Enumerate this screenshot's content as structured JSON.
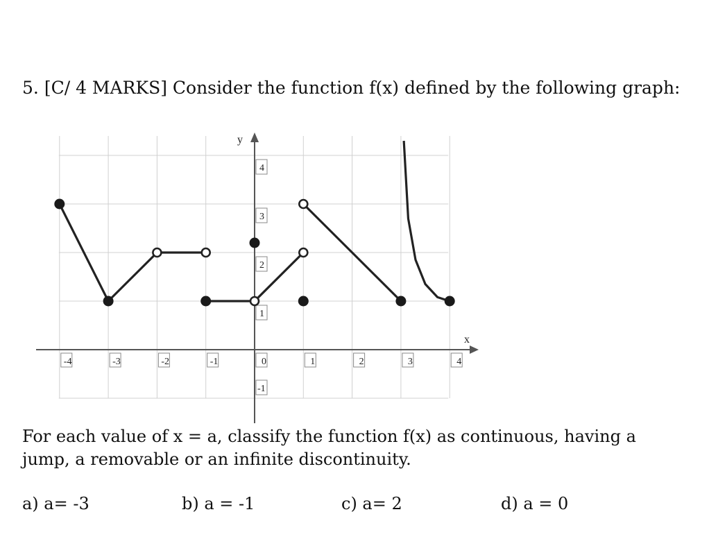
{
  "question": {
    "number": "5.",
    "marks": "[C/ 4 MARKS]",
    "text": "Consider the function f(x) defined by the following graph:"
  },
  "chart_data": {
    "type": "line",
    "title": "",
    "xlabel": "x",
    "ylabel": "y",
    "xlim": [
      -4.5,
      4.5
    ],
    "ylim": [
      -1,
      4
    ],
    "grid": true,
    "x_ticks": [
      "-4",
      "-3",
      "-2",
      "-1",
      "0",
      "1",
      "2",
      "3",
      "4"
    ],
    "y_ticks": [
      "4",
      "3",
      "2",
      "1",
      "-1"
    ],
    "segments": [
      {
        "points": [
          [
            -4,
            3
          ],
          [
            -3,
            1
          ]
        ]
      },
      {
        "points": [
          [
            -3,
            1
          ],
          [
            -2,
            2
          ]
        ]
      },
      {
        "points": [
          [
            -2,
            2
          ],
          [
            -1,
            2
          ]
        ]
      },
      {
        "points": [
          [
            -1,
            1
          ],
          [
            0,
            1
          ]
        ]
      },
      {
        "points": [
          [
            0,
            1
          ],
          [
            1,
            2
          ]
        ]
      },
      {
        "points": [
          [
            1,
            3
          ],
          [
            3,
            1
          ]
        ]
      }
    ],
    "curve": {
      "description": "vertical asymptote at x = 3 (curve rises without bound as x approaches 3 from the right)",
      "points": [
        [
          3.06,
          4.3
        ],
        [
          3.15,
          2.7
        ],
        [
          3.3,
          1.85
        ],
        [
          3.5,
          1.35
        ],
        [
          3.75,
          1.08
        ],
        [
          4,
          1
        ]
      ]
    },
    "closed_points": [
      [
        -4,
        3
      ],
      [
        -3,
        1
      ],
      [
        -1,
        1
      ],
      [
        0,
        2.2
      ],
      [
        1,
        1
      ],
      [
        3,
        1
      ],
      [
        4,
        1
      ]
    ],
    "open_points": [
      [
        -2,
        2
      ],
      [
        -1,
        2
      ],
      [
        0,
        1
      ],
      [
        1,
        2
      ],
      [
        1,
        3
      ]
    ]
  },
  "instruction": "For each value of x = a, classify the function f(x) as continuous, having a jump, a removable or an infinite discontinuity.",
  "options": [
    "a) a= -3",
    "b) a = -1",
    "c) a= 2",
    "d) a = 0"
  ]
}
